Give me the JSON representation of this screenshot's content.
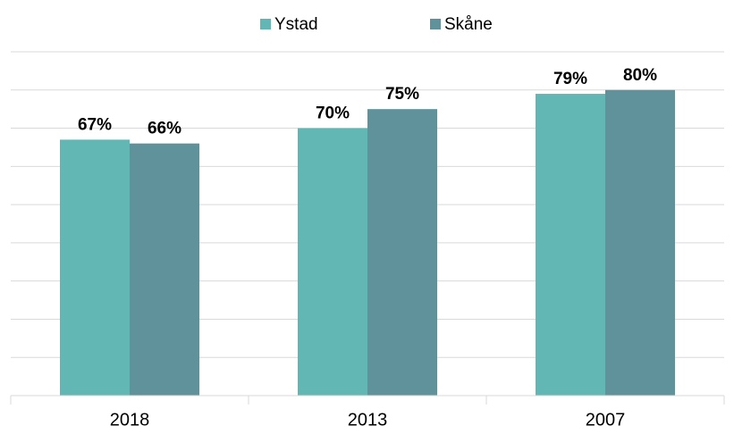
{
  "chart_data": {
    "type": "bar",
    "categories": [
      "2018",
      "2013",
      "2007"
    ],
    "series": [
      {
        "name": "Ystad",
        "color": "#62b7b4",
        "values": [
          67,
          70,
          79
        ],
        "value_labels": [
          "67%",
          "70%",
          "79%"
        ]
      },
      {
        "name": "Skåne",
        "color": "#5f929b",
        "values": [
          66,
          75,
          80
        ],
        "value_labels": [
          "66%",
          "75%",
          "80%"
        ]
      }
    ],
    "ylim": [
      0,
      90
    ],
    "yticks": [
      0,
      10,
      20,
      30,
      40,
      50,
      60,
      70,
      80,
      90
    ],
    "grid": true,
    "legend": "top"
  }
}
